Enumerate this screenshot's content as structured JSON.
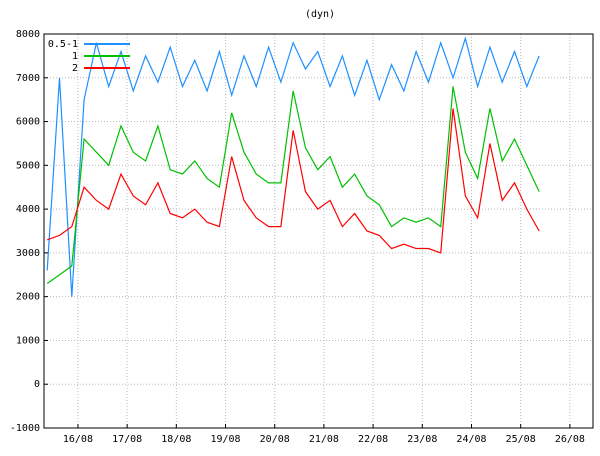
{
  "chart_data": {
    "type": "line",
    "title": "(dyn)",
    "x": [
      15.375,
      15.625,
      15.875,
      16.125,
      16.375,
      16.625,
      16.875,
      17.125,
      17.375,
      17.625,
      17.875,
      18.125,
      18.375,
      18.625,
      18.875,
      19.125,
      19.375,
      19.625,
      19.875,
      20.125,
      20.375,
      20.625,
      20.875,
      21.125,
      21.375,
      21.625,
      21.875,
      22.125,
      22.375,
      22.625,
      22.875,
      23.125,
      23.375,
      23.625,
      23.875,
      24.125,
      24.375,
      24.625,
      24.875,
      25.125,
      25.375
    ],
    "series": [
      {
        "name": "0.5-1",
        "color": "#1e90ff",
        "values": [
          2600,
          7000,
          2000,
          6500,
          7800,
          6800,
          7600,
          6700,
          7500,
          6900,
          7700,
          6800,
          7400,
          6700,
          7600,
          6600,
          7500,
          6800,
          7700,
          6900,
          7800,
          7200,
          7600,
          6800,
          7500,
          6600,
          7400,
          6500,
          7300,
          6700,
          7600,
          6900,
          7800,
          7000,
          7900,
          6800,
          7700,
          6900,
          7600,
          6800,
          7500
        ]
      },
      {
        "name": "1",
        "color": "#00c000",
        "values": [
          2300,
          2500,
          2700,
          5600,
          5300,
          5000,
          5900,
          5300,
          5100,
          5900,
          4900,
          4800,
          5100,
          4700,
          4500,
          6200,
          5300,
          4800,
          4600,
          4600,
          6700,
          5400,
          4900,
          5200,
          4500,
          4800,
          4300,
          4100,
          3600,
          3800,
          3700,
          3800,
          3600,
          6800,
          5300,
          4700,
          6300,
          5100,
          5600,
          5000,
          4400
        ]
      },
      {
        "name": "2",
        "color": "#ff0000",
        "values": [
          3300,
          3400,
          3600,
          4500,
          4200,
          4000,
          4800,
          4300,
          4100,
          4600,
          3900,
          3800,
          4000,
          3700,
          3600,
          5200,
          4200,
          3800,
          3600,
          3600,
          5800,
          4400,
          4000,
          4200,
          3600,
          3900,
          3500,
          3400,
          3100,
          3200,
          3100,
          3100,
          3000,
          6300,
          4300,
          3800,
          5500,
          4200,
          4600,
          4000,
          3500
        ]
      }
    ],
    "xlim": [
      15.31,
      26.47
    ],
    "xticks": [
      {
        "value": 16,
        "label": "16/08"
      },
      {
        "value": 17,
        "label": "17/08"
      },
      {
        "value": 18,
        "label": "18/08"
      },
      {
        "value": 19,
        "label": "19/08"
      },
      {
        "value": 20,
        "label": "20/08"
      },
      {
        "value": 21,
        "label": "21/08"
      },
      {
        "value": 22,
        "label": "22/08"
      },
      {
        "value": 23,
        "label": "23/08"
      },
      {
        "value": 24,
        "label": "24/08"
      },
      {
        "value": 25,
        "label": "25/08"
      },
      {
        "value": 26,
        "label": "26/08"
      }
    ],
    "ylim": [
      -1000,
      8000
    ],
    "yticks": [
      -1000,
      0,
      1000,
      2000,
      3000,
      4000,
      5000,
      6000,
      7000,
      8000
    ],
    "grid": true
  }
}
